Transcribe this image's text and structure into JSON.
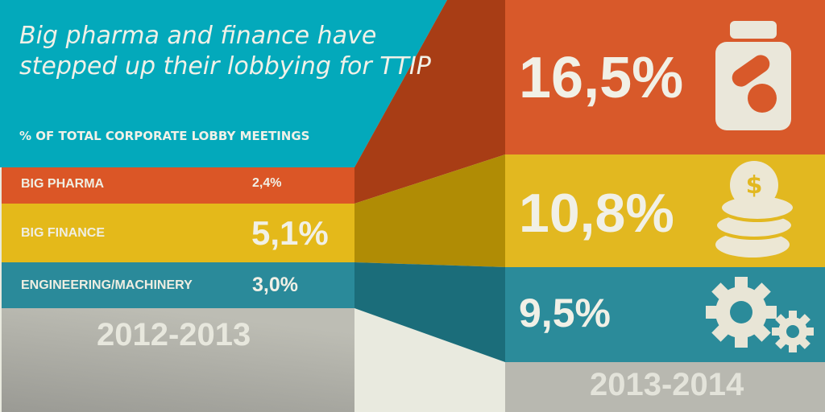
{
  "title": "Big pharma and finance have stepped up their lobbying for TTIP",
  "subtitle": "% OF TOTAL CORPORATE LOBBY MEETINGS",
  "chart_data": {
    "type": "bar",
    "title": "Big pharma and finance have stepped up their lobbying for TTIP",
    "ylabel": "% OF TOTAL CORPORATE LOBBY MEETINGS",
    "categories": [
      "2012-2013",
      "2013-2014"
    ],
    "series": [
      {
        "name": "BIG PHARMA",
        "values": [
          2.4,
          16.5
        ],
        "labels": [
          "2,4%",
          "16,5%"
        ],
        "color": "#dc5424",
        "icon": "pill-bottle-icon"
      },
      {
        "name": "BIG FINANCE",
        "values": [
          5.1,
          10.8
        ],
        "labels": [
          "5,1%",
          "10,8%"
        ],
        "color": "#e4b91a",
        "icon": "coins-icon"
      },
      {
        "name": "ENGINEERING/MACHINERY",
        "values": [
          3.0,
          9.5
        ],
        "labels": [
          "3,0%",
          "9,5%"
        ],
        "color": "#2a8a9a",
        "icon": "gears-icon"
      }
    ]
  }
}
